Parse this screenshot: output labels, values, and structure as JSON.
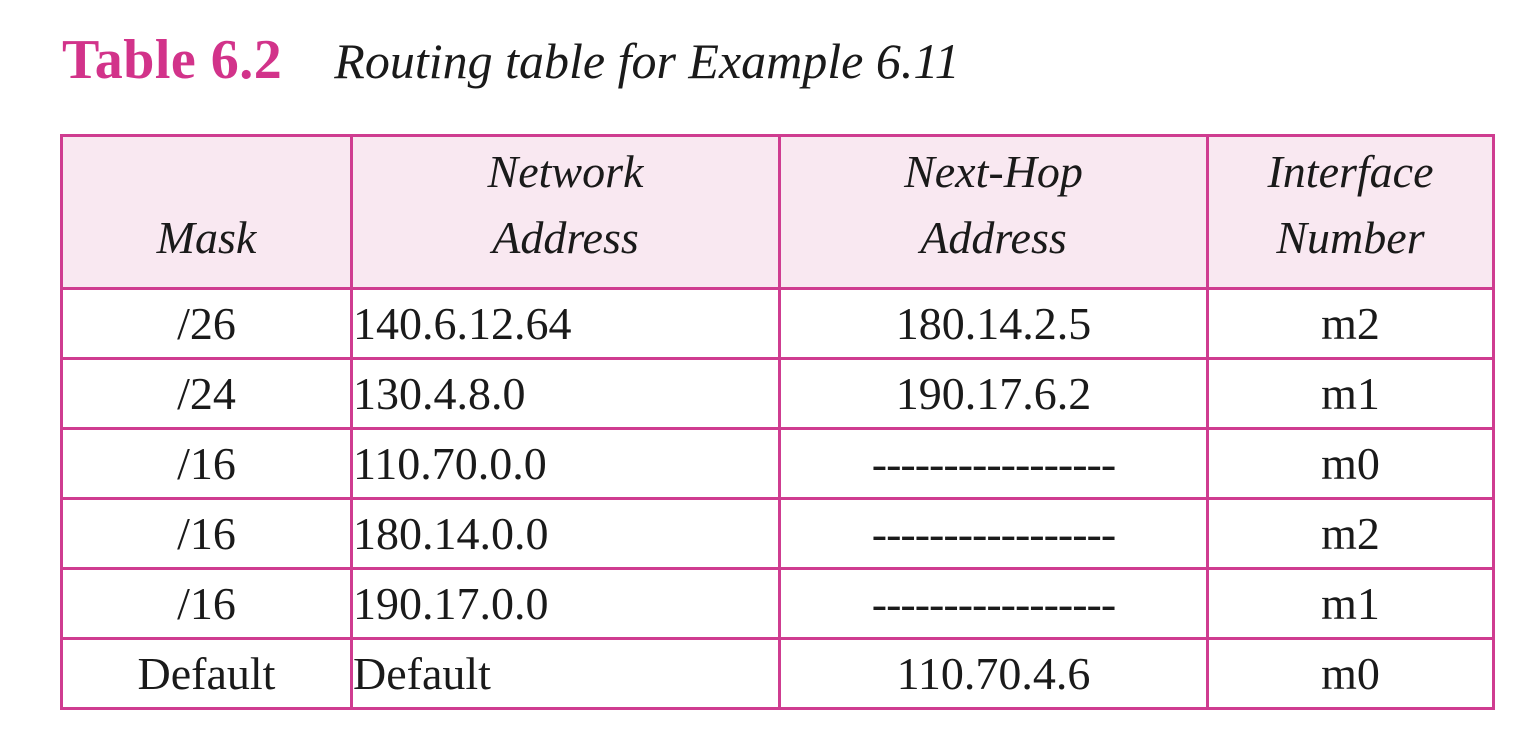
{
  "caption": {
    "label": "Table 6.2",
    "title": "Routing table for Example 6.11"
  },
  "table": {
    "headers": [
      {
        "line1": "",
        "line2": "Mask"
      },
      {
        "line1": "Network",
        "line2": "Address"
      },
      {
        "line1": "Next-Hop",
        "line2": "Address"
      },
      {
        "line1": "Interface",
        "line2": "Number"
      }
    ],
    "rows": [
      {
        "mask": "/26",
        "network": "140.6.12.64",
        "next_hop": "180.14.2.5",
        "interface": "m2"
      },
      {
        "mask": "/24",
        "network": "130.4.8.0",
        "next_hop": "190.17.6.2",
        "interface": "m1"
      },
      {
        "mask": "/16",
        "network": "110.70.0.0",
        "next_hop": "-----------------",
        "interface": "m0"
      },
      {
        "mask": "/16",
        "network": "180.14.0.0",
        "next_hop": "-----------------",
        "interface": "m2"
      },
      {
        "mask": "/16",
        "network": "190.17.0.0",
        "next_hop": "-----------------",
        "interface": "m1"
      },
      {
        "mask": "Default",
        "network": "Default",
        "next_hop": "110.70.4.6",
        "interface": "m0"
      }
    ]
  },
  "colors": {
    "accent": "#d2338a",
    "border": "#cf3c90",
    "header_background": "#f9e8f1",
    "text": "#1a1a1a"
  }
}
